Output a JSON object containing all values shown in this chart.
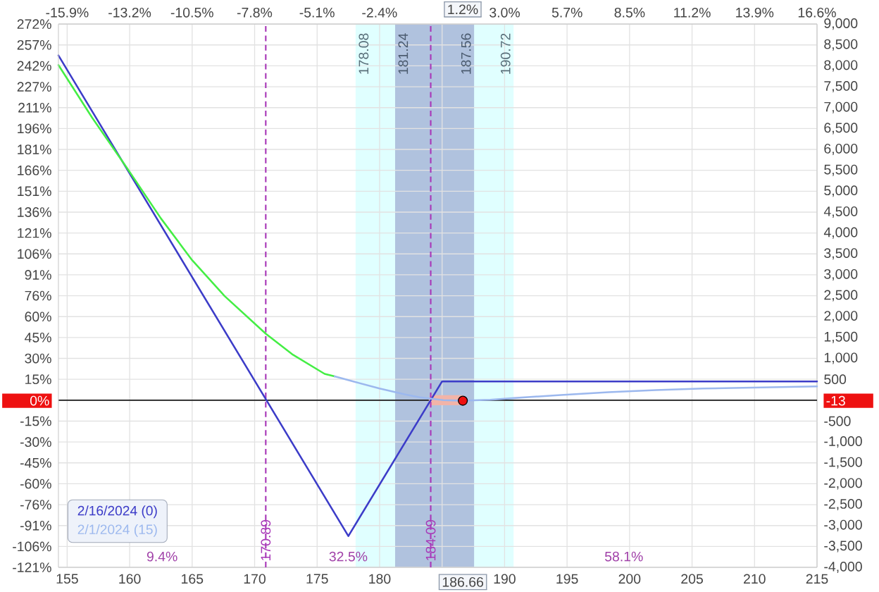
{
  "chart_data": {
    "type": "line",
    "xlim": [
      154.3,
      215
    ],
    "xticks": [
      155,
      160,
      165,
      170,
      175,
      180,
      {
        "value": 185,
        "label": null
      },
      190,
      195,
      200,
      205,
      210,
      215,
      {
        "value": 186.66,
        "label": "186.66"
      }
    ],
    "x2lim": [
      -16.33,
      16.58
    ],
    "x2ticks": [
      {
        "value": -15.95,
        "label": "-15.9%"
      },
      {
        "value": -13.24,
        "label": "-13.2%"
      },
      {
        "value": -10.53,
        "label": "-10.5%"
      },
      {
        "value": -7.82,
        "label": "-7.8%"
      },
      {
        "value": -5.11,
        "label": "-5.1%"
      },
      {
        "value": -2.4,
        "label": "-2.4%"
      },
      {
        "value": 0.32,
        "label": null
      },
      {
        "value": 3.03,
        "label": "3.0%"
      },
      {
        "value": 5.74,
        "label": "5.7%"
      },
      {
        "value": 8.45,
        "label": "8.5%"
      },
      {
        "value": 11.16,
        "label": "11.2%"
      },
      {
        "value": 13.87,
        "label": "13.9%"
      },
      {
        "value": 16.58,
        "label": "16.6%"
      },
      {
        "value": 1.21,
        "label": "1.2%"
      }
    ],
    "ylim": [
      -120.83,
      271.87
    ],
    "yticks": [
      {
        "value": -120.83,
        "label": "-121%"
      },
      {
        "value": -105.73,
        "label": "-106%"
      },
      {
        "value": -90.62,
        "label": "-91%"
      },
      {
        "value": -75.52,
        "label": "-76%"
      },
      {
        "value": -60.42,
        "label": "-60%"
      },
      {
        "value": -45.31,
        "label": "-45%"
      },
      {
        "value": -30.21,
        "label": "-30%"
      },
      {
        "value": -15.1,
        "label": "-15%"
      },
      {
        "value": 0,
        "label": null
      },
      {
        "value": 15.1,
        "label": "15%"
      },
      {
        "value": 30.21,
        "label": "30%"
      },
      {
        "value": 45.31,
        "label": "45%"
      },
      {
        "value": 60.42,
        "label": "60%"
      },
      {
        "value": 75.52,
        "label": "76%"
      },
      {
        "value": 90.62,
        "label": "91%"
      },
      {
        "value": 105.73,
        "label": "106%"
      },
      {
        "value": 120.83,
        "label": "121%"
      },
      {
        "value": 135.94,
        "label": "136%"
      },
      {
        "value": 151.04,
        "label": "151%"
      },
      {
        "value": 166.14,
        "label": "166%"
      },
      {
        "value": 181.25,
        "label": "181%"
      },
      {
        "value": 196.35,
        "label": "196%"
      },
      {
        "value": 211.46,
        "label": "211%"
      },
      {
        "value": 226.56,
        "label": "227%"
      },
      {
        "value": 241.66,
        "label": "242%"
      },
      {
        "value": 256.77,
        "label": "257%"
      },
      {
        "value": 271.87,
        "label": "272%"
      },
      {
        "value": -0.39,
        "label": "0%"
      }
    ],
    "y2lim": [
      -4000,
      9000
    ],
    "y2ticks": [
      {
        "value": -4000,
        "label": "-4,000"
      },
      {
        "value": -3500,
        "label": "-3,500"
      },
      {
        "value": -3000,
        "label": "-3,000"
      },
      {
        "value": -2500,
        "label": "-2,500"
      },
      {
        "value": -2000,
        "label": "-2,000"
      },
      {
        "value": -1500,
        "label": "-1,500"
      },
      {
        "value": -1000,
        "label": "-1,000"
      },
      -500,
      {
        "value": 0,
        "label": null
      },
      500,
      {
        "value": 1000,
        "label": "1,000"
      },
      {
        "value": 1500,
        "label": "1,500"
      },
      {
        "value": 2000,
        "label": "2,000"
      },
      {
        "value": 2500,
        "label": "2,500"
      },
      {
        "value": 3000,
        "label": "3,000"
      },
      {
        "value": 3500,
        "label": "3,500"
      },
      {
        "value": 4000,
        "label": "4,000"
      },
      {
        "value": 4500,
        "label": "4,500"
      },
      {
        "value": 5000,
        "label": "5,000"
      },
      {
        "value": 5500,
        "label": "5,500"
      },
      {
        "value": 6000,
        "label": "6,000"
      },
      {
        "value": 6500,
        "label": "6,500"
      },
      {
        "value": 7000,
        "label": "7,000"
      },
      {
        "value": 7500,
        "label": "7,500"
      },
      {
        "value": 8000,
        "label": "8,000"
      },
      {
        "value": 8500,
        "label": "8,500"
      },
      {
        "value": 9000,
        "label": "9,000"
      },
      {
        "value": -13,
        "label": "-13"
      }
    ],
    "grid": true,
    "legend": "bottom left",
    "bands": [
      {
        "axis": "x",
        "from": 178.08,
        "to": 190.72,
        "color": "#e0ffff"
      },
      {
        "axis": "x",
        "from": 181.24,
        "to": 187.56,
        "color": "#b0c2de"
      }
    ],
    "ref_lines": [
      {
        "axis": "y2",
        "value": 0,
        "color": "#1a1a1a"
      },
      {
        "axis": "x",
        "value": 170.89,
        "label": "170.89",
        "color": "#a838b8",
        "line_style": "dashed"
      },
      {
        "axis": "x",
        "value": 184.09,
        "label": "184.09",
        "color": "#a838b8",
        "line_style": "dashed"
      }
    ],
    "annotations": [
      {
        "text": "178.08",
        "x": 178.08
      },
      {
        "text": "181.24",
        "x": 181.24
      },
      {
        "text": "187.56",
        "x": 187.56
      },
      {
        "text": "190.72",
        "x": 190.72
      },
      "9.4%",
      "32.5%",
      "58.1%"
    ],
    "series": [
      {
        "axis": "y2",
        "color": "#f2b4a8",
        "x": [
          184,
          186.66
        ],
        "values": [
          0,
          0
        ],
        "lower": [
          -120,
          -120
        ],
        "upper": [
          120,
          120
        ]
      },
      {
        "name": "2/16/2024 (0)",
        "axis": "y2",
        "color": "#3c3cc8",
        "x": [
          154.3,
          177.5,
          185,
          215
        ],
        "values": [
          8250,
          -3250,
          450,
          450
        ]
      },
      {
        "axis": "y2",
        "color": "#44ee44",
        "x": [
          154.3,
          157,
          159.8,
          162.5,
          165,
          167.6,
          170.89,
          173,
          175.6,
          176.4
        ],
        "values": [
          8020,
          6760,
          5550,
          4350,
          3350,
          2490,
          1590,
          1100,
          630,
          570
        ]
      },
      {
        "name": "2/1/2024 (15)",
        "axis": "y2",
        "color": "#9cb8ee",
        "x": [
          176.4,
          178,
          180,
          182,
          183.2,
          185.1,
          186.66,
          188.86,
          190.74,
          194.5,
          198.3,
          202.1,
          205.9,
          209.8,
          215
        ],
        "values": [
          570,
          440,
          280,
          140,
          70,
          0,
          -13,
          10,
          50,
          125,
          190,
          240,
          280,
          300,
          330
        ]
      },
      {
        "type": "scatter",
        "axis": "y2",
        "color": "#ee1111",
        "marker": "circle",
        "x": [
          186.66
        ],
        "values": [
          -13
        ]
      }
    ]
  }
}
